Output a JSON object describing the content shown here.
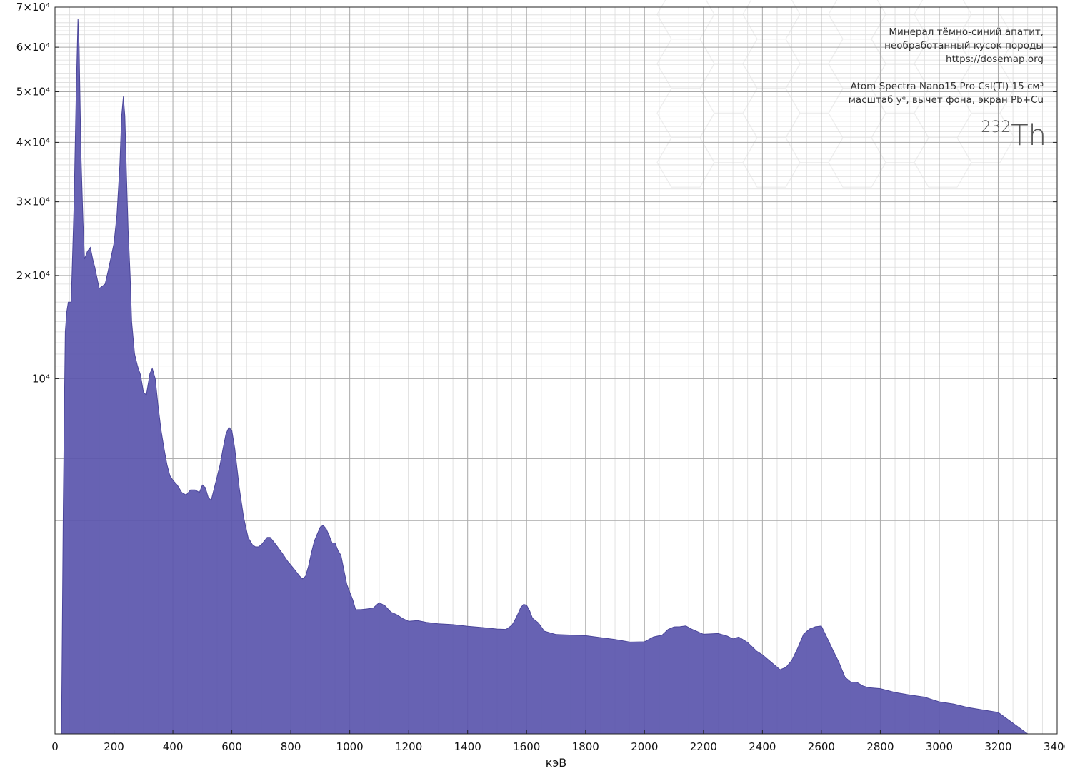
{
  "annotations": {
    "line1": "Минерал тёмно-синий апатит,",
    "line2": "необработанный кусок породы",
    "line3": "https://dosemap.org",
    "line4": "Atom Spectra Nano15 Pro CsI(Tl) 15 см³",
    "line5": "масштаб yᵉ, вычет фона, экран Pb+Cu",
    "isotope_mass": "232",
    "isotope_symbol": "Th"
  },
  "colors": {
    "fill": "#5a55ad",
    "stroke": "#4a4599",
    "grid_major": "#a9a9a9",
    "grid_minor": "#dcdcdc"
  },
  "chart_data": {
    "type": "area",
    "title": "",
    "xlabel": "кэВ",
    "ylabel": "",
    "xlim": [
      0,
      3400
    ],
    "ylim": [
      0,
      70000
    ],
    "y_scale": "power (yᵉ)",
    "grid": true,
    "x_ticks": [
      "0",
      "200",
      "400",
      "600",
      "800",
      "1000",
      "1200",
      "1400",
      "1600",
      "1800",
      "2000",
      "2200",
      "2400",
      "2600",
      "2800",
      "3000",
      "3200",
      "3400"
    ],
    "y_ticks": [
      {
        "value": 10000,
        "label": "10⁴"
      },
      {
        "value": 20000,
        "label": "2×10⁴"
      },
      {
        "value": 30000,
        "label": "3×10⁴"
      },
      {
        "value": 40000,
        "label": "4×10⁴"
      },
      {
        "value": 50000,
        "label": "5×10⁴"
      },
      {
        "value": 60000,
        "label": "6×10⁴"
      },
      {
        "value": 70000,
        "label": "7×10⁴"
      }
    ],
    "series": [
      {
        "x": [
          22,
          28,
          35,
          40,
          45,
          55,
          65,
          72,
          78,
          82,
          88,
          95,
          100,
          110,
          120,
          128,
          135,
          150,
          170,
          180,
          200,
          210,
          220,
          226,
          232,
          237,
          242,
          248,
          255,
          260,
          270,
          280,
          290,
          300,
          310,
          322,
          330,
          340,
          350,
          360,
          370,
          380,
          390,
          400,
          415,
          430,
          445,
          460,
          475,
          490,
          500,
          510,
          520,
          530,
          545,
          560,
          570,
          580,
          590,
          600,
          610,
          625,
          640,
          655,
          670,
          680,
          690,
          700,
          710,
          720,
          730,
          750,
          770,
          790,
          810,
          830,
          840,
          850,
          860,
          870,
          880,
          890,
          900,
          910,
          920,
          930,
          940,
          950,
          960,
          970,
          980,
          990,
          1000,
          1010,
          1020,
          1040,
          1060,
          1080,
          1100,
          1120,
          1140,
          1160,
          1180,
          1200,
          1230,
          1260,
          1300,
          1350,
          1400,
          1450,
          1500,
          1530,
          1550,
          1560,
          1570,
          1580,
          1590,
          1600,
          1610,
          1620,
          1640,
          1660,
          1700,
          1800,
          1900,
          1950,
          2000,
          2030,
          2060,
          2080,
          2100,
          2120,
          2140,
          2160,
          2200,
          2250,
          2280,
          2300,
          2320,
          2350,
          2380,
          2400,
          2430,
          2460,
          2480,
          2500,
          2520,
          2540,
          2560,
          2580,
          2600,
          2620,
          2640,
          2660,
          2680,
          2700,
          2720,
          2740,
          2760,
          2800,
          2850,
          2900,
          2950,
          3000,
          3050,
          3100,
          3200,
          3300,
          3340,
          3350
        ],
        "y": [
          0,
          3000,
          14000,
          16000,
          17000,
          17000,
          30000,
          50000,
          67000,
          60000,
          38000,
          27000,
          22000,
          23000,
          23500,
          22000,
          21000,
          18500,
          19000,
          20500,
          24000,
          28000,
          36000,
          45000,
          49000,
          45000,
          35000,
          26000,
          20000,
          15000,
          12000,
          11000,
          10300,
          9000,
          8800,
          10400,
          10800,
          10000,
          8000,
          6500,
          5500,
          4700,
          4200,
          4000,
          3800,
          3500,
          3400,
          3600,
          3600,
          3500,
          3800,
          3700,
          3300,
          3200,
          3900,
          4700,
          5500,
          6300,
          6700,
          6500,
          5500,
          3700,
          2600,
          2000,
          1800,
          1750,
          1750,
          1800,
          1900,
          2000,
          2000,
          1800,
          1600,
          1400,
          1250,
          1100,
          1050,
          1100,
          1300,
          1600,
          1900,
          2100,
          2300,
          2350,
          2250,
          2050,
          1850,
          1850,
          1750,
          1500,
          1200,
          1000,
          800,
          700,
          600,
          560,
          580,
          620,
          650,
          620,
          560,
          500,
          470,
          450,
          440,
          430,
          420,
          400,
          390,
          380,
          360,
          360,
          400,
          450,
          520,
          600,
          650,
          630,
          560,
          480,
          420,
          340,
          320,
          300,
          270,
          260,
          250,
          290,
          320,
          350,
          380,
          400,
          380,
          360,
          330,
          310,
          300,
          290,
          280,
          250,
          200,
          160,
          130,
          100,
          100,
          140,
          220,
          300,
          370,
          400,
          370,
          290,
          200,
          120,
          70,
          55,
          50,
          45,
          40,
          35,
          30,
          25,
          20,
          15,
          12,
          8,
          5,
          0,
          0,
          0
        ]
      }
    ]
  }
}
